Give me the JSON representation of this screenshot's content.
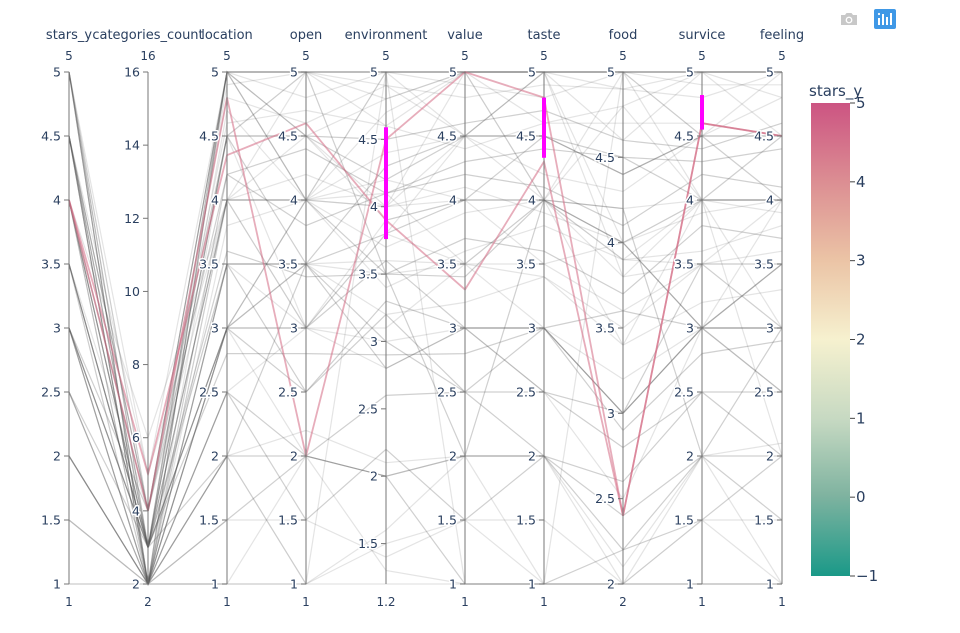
{
  "toolbar": {
    "camera_icon": "camera-icon",
    "plotly_logo_icon": "plotly-logo-icon"
  },
  "colors": {
    "line_gray": "#555555",
    "constraint": "#ff00ff",
    "axis": "#666666",
    "text": "#2a3f5f"
  },
  "chart_data": {
    "type": "parallel_coordinates",
    "color_variable": "stars_y",
    "colorscale": [
      "#1a9988",
      "#7fb3a0",
      "#c6d9c2",
      "#f6f1cf",
      "#ebc3a5",
      "#dc8f93",
      "#cc5482"
    ],
    "colorbar": {
      "title": "stars_y",
      "range": [
        -1,
        5
      ],
      "ticks": [
        5,
        4,
        3,
        2,
        1,
        0,
        -1
      ],
      "tick_labels": [
        "5",
        "4",
        "3",
        "2",
        "1",
        "0",
        "−1"
      ]
    },
    "dimensions": [
      {
        "label": "stars_y",
        "range": [
          1,
          5
        ],
        "range_labels": [
          "5",
          "1"
        ],
        "ticks": [
          1,
          1.5,
          2,
          2.5,
          3,
          3.5,
          4,
          4.5,
          5
        ],
        "tick_labels": [
          "1",
          "1.5",
          "2",
          "2.5",
          "3",
          "3.5",
          "4",
          "4.5",
          "5"
        ]
      },
      {
        "label": "categories_count",
        "range": [
          2,
          16
        ],
        "range_labels": [
          "16",
          "2"
        ],
        "ticks": [
          2,
          4,
          6,
          8,
          10,
          12,
          14,
          16
        ],
        "tick_labels": [
          "2",
          "4",
          "6",
          "8",
          "10",
          "12",
          "14",
          "16"
        ]
      },
      {
        "label": "location",
        "range": [
          1,
          5
        ],
        "range_labels": [
          "5",
          "1"
        ],
        "ticks": [
          1,
          1.5,
          2,
          2.5,
          3,
          3.5,
          4,
          4.5,
          5
        ],
        "tick_labels": [
          "1",
          "1.5",
          "2",
          "2.5",
          "3",
          "3.5",
          "4",
          "4.5",
          "5"
        ]
      },
      {
        "label": "open",
        "range": [
          1,
          5
        ],
        "range_labels": [
          "5",
          "1"
        ],
        "ticks": [
          1,
          1.5,
          2,
          2.5,
          3,
          3.5,
          4,
          4.5,
          5
        ],
        "tick_labels": [
          "1",
          "1.5",
          "2",
          "2.5",
          "3",
          "3.5",
          "4",
          "4.5",
          "5"
        ]
      },
      {
        "label": "environment",
        "range": [
          1.2,
          5
        ],
        "range_labels": [
          "5",
          "1.2"
        ],
        "ticks": [
          1.5,
          2,
          2.5,
          3,
          3.5,
          4,
          4.5,
          5
        ],
        "tick_labels": [
          "1.5",
          "2",
          "2.5",
          "3",
          "3.5",
          "4",
          "4.5",
          "5"
        ],
        "constraint": [
          3.76,
          4.59
        ]
      },
      {
        "label": "value",
        "range": [
          1,
          5
        ],
        "range_labels": [
          "5",
          "1"
        ],
        "ticks": [
          1,
          1.5,
          2,
          2.5,
          3,
          3.5,
          4,
          4.5,
          5
        ],
        "tick_labels": [
          "1",
          "1.5",
          "2",
          "2.5",
          "3",
          "3.5",
          "4",
          "4.5",
          "5"
        ]
      },
      {
        "label": "taste",
        "range": [
          1,
          5
        ],
        "range_labels": [
          "5",
          "1"
        ],
        "ticks": [
          1,
          1.5,
          2,
          2.5,
          3,
          3.5,
          4,
          4.5,
          5
        ],
        "tick_labels": [
          "1",
          "1.5",
          "2",
          "2.5",
          "3",
          "3.5",
          "4",
          "4.5",
          "5"
        ],
        "constraint": [
          4.33,
          4.8
        ]
      },
      {
        "label": "food",
        "range": [
          2,
          5
        ],
        "range_labels": [
          "5",
          "2"
        ],
        "ticks": [
          2,
          2.5,
          3,
          3.5,
          4,
          4.5,
          5
        ],
        "tick_labels": [
          "2",
          "2.5",
          "3",
          "3.5",
          "4",
          "4.5",
          "5"
        ]
      },
      {
        "label": "survice",
        "range": [
          1,
          5
        ],
        "range_labels": [
          "5",
          "1"
        ],
        "ticks": [
          1,
          1.5,
          2,
          2.5,
          3,
          3.5,
          4,
          4.5,
          5
        ],
        "tick_labels": [
          "1",
          "1.5",
          "2",
          "2.5",
          "3",
          "3.5",
          "4",
          "4.5",
          "5"
        ],
        "constraint": [
          4.55,
          4.82
        ]
      },
      {
        "label": "feeling",
        "range": [
          1,
          5
        ],
        "range_labels": [
          "5",
          "1"
        ],
        "ticks": [
          1,
          1.5,
          2,
          2.5,
          3,
          3.5,
          4,
          4.5,
          5
        ],
        "tick_labels": [
          "1",
          "1.5",
          "2",
          "2.5",
          "3",
          "3.5",
          "4",
          "4.5",
          "5"
        ]
      }
    ],
    "highlighted_records": [
      {
        "stars_y": 4,
        "values": [
          4,
          4,
          4.8,
          2,
          4.5,
          5,
          4.8,
          2.4,
          4.6,
          4.5
        ]
      },
      {
        "stars_y": 4,
        "values": [
          4,
          5,
          4.35,
          4.6,
          3.9,
          3.3,
          4.3,
          2.4,
          4.6,
          4.5
        ]
      }
    ],
    "background_records": [
      [
        5,
        2,
        5,
        5,
        5,
        5,
        5,
        5,
        5,
        5
      ],
      [
        5,
        2,
        1,
        1,
        5,
        1,
        1,
        5,
        5,
        5
      ],
      [
        4.5,
        3,
        5,
        4,
        4,
        4.5,
        4,
        4.8,
        4,
        4
      ],
      [
        4.5,
        2,
        3,
        4,
        3.5,
        2,
        4,
        4,
        3,
        3.5
      ],
      [
        4,
        3,
        4,
        4.5,
        4,
        5,
        5,
        4,
        3,
        4
      ],
      [
        3.5,
        3,
        4.5,
        3,
        3.8,
        4.5,
        5,
        3.8,
        4,
        2
      ],
      [
        3,
        4,
        5,
        5,
        3.5,
        3.4,
        4,
        4.2,
        2,
        3
      ],
      [
        2.5,
        2,
        3,
        2,
        2,
        2,
        2,
        2,
        1,
        1
      ],
      [
        5,
        5,
        4,
        4,
        5,
        5,
        4,
        5,
        4,
        3
      ],
      [
        4.5,
        4,
        5,
        4.5,
        4.2,
        4.5,
        4.5,
        4.4,
        4.5,
        4.5
      ],
      [
        1.5,
        2,
        1,
        1,
        1.2,
        1,
        1,
        2,
        1,
        1
      ],
      [
        3,
        3,
        3.5,
        3,
        3,
        3,
        3,
        3,
        3,
        3
      ],
      [
        2,
        2,
        2,
        2,
        2,
        1,
        1,
        2.2,
        2,
        2
      ],
      [
        4,
        6,
        4,
        5,
        4.6,
        5,
        5,
        5,
        5,
        5
      ],
      [
        4.5,
        2,
        5,
        4,
        5,
        5,
        4,
        3.4,
        4,
        4
      ],
      [
        3.5,
        3,
        3,
        3.5,
        2.8,
        3,
        3,
        3,
        3.5,
        3
      ],
      [
        5,
        4,
        5,
        5,
        5,
        5,
        5,
        5,
        5,
        4.5
      ],
      [
        1,
        2,
        1,
        2,
        1.3,
        1,
        1,
        2,
        1,
        1
      ],
      [
        4,
        3,
        4.5,
        3.5,
        4.3,
        4.5,
        4.5,
        4.5,
        4,
        4.5
      ],
      [
        4.5,
        2,
        4,
        4,
        4,
        4,
        4,
        4,
        4,
        4
      ],
      [
        3,
        2,
        2.5,
        3,
        3.1,
        3.5,
        3,
        3.2,
        3,
        3.5
      ],
      [
        2.5,
        3,
        3,
        2.5,
        3.2,
        2.5,
        2,
        2.6,
        2.5,
        2
      ],
      [
        5,
        3,
        5,
        5,
        5,
        5,
        5,
        5,
        5,
        5
      ],
      [
        3.5,
        4,
        4,
        4,
        4.2,
        4,
        3.5,
        4,
        3,
        3.5
      ],
      [
        4,
        2,
        3.5,
        3.5,
        3.8,
        4,
        4.5,
        4.4,
        4.5,
        4
      ],
      [
        4.5,
        5,
        5,
        4.5,
        4.8,
        5,
        5,
        4.6,
        5,
        5
      ],
      [
        1.5,
        2,
        2,
        1,
        1.5,
        1.5,
        1,
        2,
        1.5,
        1
      ],
      [
        3,
        2,
        3,
        3,
        3.6,
        3,
        3,
        3.6,
        3,
        3
      ],
      [
        4,
        3,
        4,
        4,
        4.1,
        3.5,
        4,
        4,
        4,
        4
      ],
      [
        5,
        2,
        4.5,
        5,
        5,
        4.5,
        5,
        5,
        4.5,
        5
      ],
      [
        2,
        2,
        1.5,
        2,
        2,
        2,
        2,
        2.4,
        2,
        1.5
      ],
      [
        3.5,
        2,
        4,
        3,
        3.8,
        3.5,
        4,
        3.8,
        3.5,
        3.5
      ],
      [
        4.5,
        3,
        4.7,
        4,
        4.4,
        4.5,
        4.2,
        4.3,
        4.5,
        4.5
      ],
      [
        3,
        3,
        2,
        3.5,
        3,
        2.5,
        3,
        3,
        3,
        3
      ],
      [
        4,
        4,
        4.5,
        4.5,
        3.9,
        4,
        4,
        4.2,
        4,
        4
      ],
      [
        5,
        3,
        5,
        4,
        4.7,
        5,
        4.6,
        4.8,
        5,
        5
      ],
      [
        2.5,
        2,
        2.5,
        2,
        2.6,
        2.5,
        2.5,
        2.8,
        2.5,
        2.5
      ],
      [
        3.5,
        3,
        3.5,
        3.5,
        3.5,
        3.5,
        3.5,
        3.6,
        3.5,
        3.5
      ],
      [
        4.5,
        4,
        4.5,
        5,
        4.9,
        4.5,
        5,
        5,
        4.5,
        4.8
      ],
      [
        3,
        2,
        3.5,
        2.5,
        3.3,
        3,
        2.5,
        3,
        3,
        2.5
      ],
      [
        4,
        3,
        4,
        3,
        3.9,
        4,
        4,
        3.9,
        3.5,
        4
      ],
      [
        1,
        2,
        2,
        1,
        1.6,
        2,
        1,
        2,
        2,
        1
      ],
      [
        4.5,
        2,
        4.2,
        4.4,
        4.1,
        4.3,
        4.4,
        4.5,
        4.3,
        4.4
      ],
      [
        3.5,
        3,
        3,
        4,
        3.4,
        3.6,
        3.8,
        3.9,
        3.6,
        3.8
      ],
      [
        5,
        4,
        4.8,
        4.6,
        4.9,
        4.8,
        4.9,
        4.9,
        4.8,
        5
      ],
      [
        2,
        2,
        2.5,
        1.5,
        2.2,
        1.5,
        2,
        2.2,
        1.5,
        2
      ],
      [
        3,
        3,
        3,
        3.5,
        3.2,
        3.2,
        3.4,
        3.4,
        3.2,
        3.3
      ],
      [
        4,
        2,
        3.8,
        4,
        3.7,
        3.9,
        4,
        3.9,
        4,
        3.9
      ],
      [
        4.5,
        3,
        4.5,
        4.5,
        4.5,
        4.6,
        4.7,
        4.6,
        4.4,
        4.6
      ],
      [
        2.5,
        2,
        3,
        3,
        2.8,
        3,
        2.5,
        2.5,
        3,
        2.5
      ],
      [
        3.5,
        2,
        3.5,
        3.5,
        3.6,
        3.5,
        3.4,
        3.5,
        3.5,
        3.6
      ],
      [
        4,
        4,
        4.2,
        3.8,
        4.1,
        4.2,
        4.1,
        4.1,
        4.2,
        4.1
      ],
      [
        5,
        2,
        5,
        4.8,
        5,
        4.9,
        4.8,
        5,
        4.9,
        4.9
      ],
      [
        1.5,
        2,
        1.5,
        1.5,
        1.4,
        1.5,
        1.5,
        2,
        1.5,
        1.5
      ],
      [
        3,
        3,
        2.8,
        2.8,
        2.9,
        2.8,
        3,
        2.9,
        2.8,
        2.9
      ],
      [
        4.5,
        4,
        4.6,
        4.7,
        4.6,
        4.4,
        4.6,
        4.7,
        4.6,
        4.5
      ],
      [
        4,
        3,
        4,
        4.2,
        4,
        4.1,
        3.9,
        4,
        3.9,
        4
      ],
      [
        3.5,
        3,
        3.6,
        3.4,
        3.5,
        3.7,
        3.6,
        3.7,
        3.8,
        3.7
      ],
      [
        2,
        2,
        2,
        2.2,
        2.1,
        2,
        2,
        2.1,
        2,
        2.1
      ],
      [
        5,
        3,
        4.9,
        5,
        4.8,
        5,
        5,
        4.9,
        5,
        4.8
      ]
    ]
  }
}
